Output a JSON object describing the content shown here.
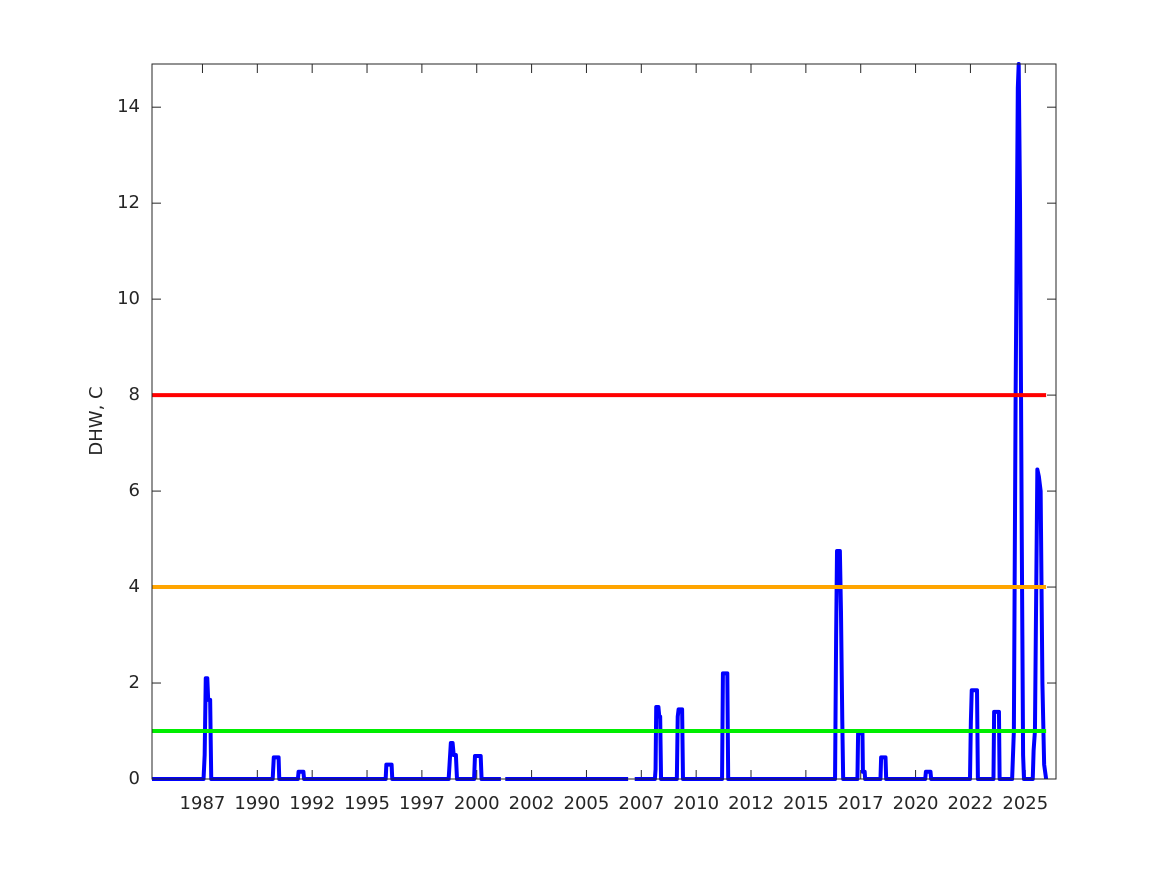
{
  "chart_data": {
    "type": "line",
    "ylabel": "DHW, C",
    "color": "#0000ff",
    "x": [
      1985.2,
      1987.55,
      1987.6,
      1987.65,
      1987.72,
      1987.76,
      1987.85,
      1987.9,
      1990.7,
      1990.75,
      1990.97,
      1991.0,
      1991.85,
      1991.88,
      1992.1,
      1992.13,
      1995.85,
      1995.88,
      1996.12,
      1996.15,
      1998.72,
      1998.76,
      1998.82,
      1998.9,
      1998.95,
      1999.05,
      1999.1,
      1999.88,
      1999.92,
      2000.18,
      2000.22,
      2001.1,
      2001.2,
      2001.3,
      2006.9,
      2007.0,
      2007.2,
      2008.12,
      2008.15,
      2008.18,
      2008.28,
      2008.32,
      2008.36,
      2008.4,
      2009.12,
      2009.16,
      2009.2,
      2009.36,
      2009.4,
      2011.18,
      2011.22,
      2011.42,
      2011.46,
      2016.33,
      2016.38,
      2016.42,
      2016.55,
      2016.6,
      2016.66,
      2016.7,
      2017.35,
      2017.38,
      2017.58,
      2017.6,
      2017.68,
      2017.7,
      2018.4,
      2018.43,
      2018.63,
      2018.66,
      2020.44,
      2020.47,
      2020.68,
      2020.71,
      2022.48,
      2022.52,
      2022.56,
      2022.8,
      2022.84,
      2023.55,
      2023.58,
      2023.8,
      2023.83,
      2024.4,
      2024.48,
      2024.56,
      2024.66,
      2024.7,
      2024.76,
      2024.84,
      2024.9,
      2024.94,
      2025.34,
      2025.38,
      2025.44,
      2025.5,
      2025.55,
      2025.62,
      2025.7,
      2025.78,
      2025.86,
      2025.95
    ],
    "values": [
      0,
      0,
      0.5,
      2.1,
      2.1,
      1.65,
      1.65,
      0,
      0,
      0.45,
      0.45,
      0,
      0,
      0.15,
      0.15,
      0,
      0,
      0.3,
      0.3,
      0,
      0,
      0.3,
      0.75,
      0.75,
      0.5,
      0.5,
      0,
      0,
      0.48,
      0.48,
      0,
      0,
      null,
      0,
      0,
      null,
      0,
      0,
      0.2,
      1.5,
      1.5,
      1.3,
      1.3,
      0,
      0,
      1.3,
      1.45,
      1.45,
      0,
      0,
      2.2,
      2.2,
      0,
      0,
      3,
      4.75,
      4.75,
      3.5,
      1.2,
      0,
      0,
      0.95,
      0.95,
      0.15,
      0.15,
      0,
      0,
      0.45,
      0.45,
      0,
      0,
      0.15,
      0.15,
      0,
      0,
      1.2,
      1.85,
      1.85,
      0,
      0,
      1.4,
      1.4,
      0,
      0,
      1,
      8,
      14.4,
      14.9,
      12,
      5,
      0.5,
      0,
      0,
      0.6,
      1,
      4,
      6.45,
      6.3,
      6,
      2,
      0.3,
      0
    ],
    "reference_lines": [
      {
        "value": 1,
        "color": "#00ee00"
      },
      {
        "value": 4,
        "color": "#ffa500"
      },
      {
        "value": 8,
        "color": "#ff0000"
      }
    ],
    "xlim": [
      1985.2,
      2026.4
    ],
    "ylim": [
      0,
      14.9
    ],
    "xticks": [
      {
        "value": 1987.5,
        "label": "1987"
      },
      1990,
      {
        "value": 1992.5,
        "label": "1992"
      },
      1995,
      {
        "value": 1997.5,
        "label": "1997"
      },
      2000,
      {
        "value": 2002.5,
        "label": "2002"
      },
      2005,
      {
        "value": 2007.5,
        "label": "2007"
      },
      2010,
      {
        "value": 2012.5,
        "label": "2012"
      },
      2015,
      {
        "value": 2017.5,
        "label": "2017"
      },
      2020,
      {
        "value": 2022.5,
        "label": "2022"
      },
      2025
    ],
    "yticks": [
      0,
      2,
      4,
      6,
      8,
      10,
      12,
      14
    ]
  }
}
